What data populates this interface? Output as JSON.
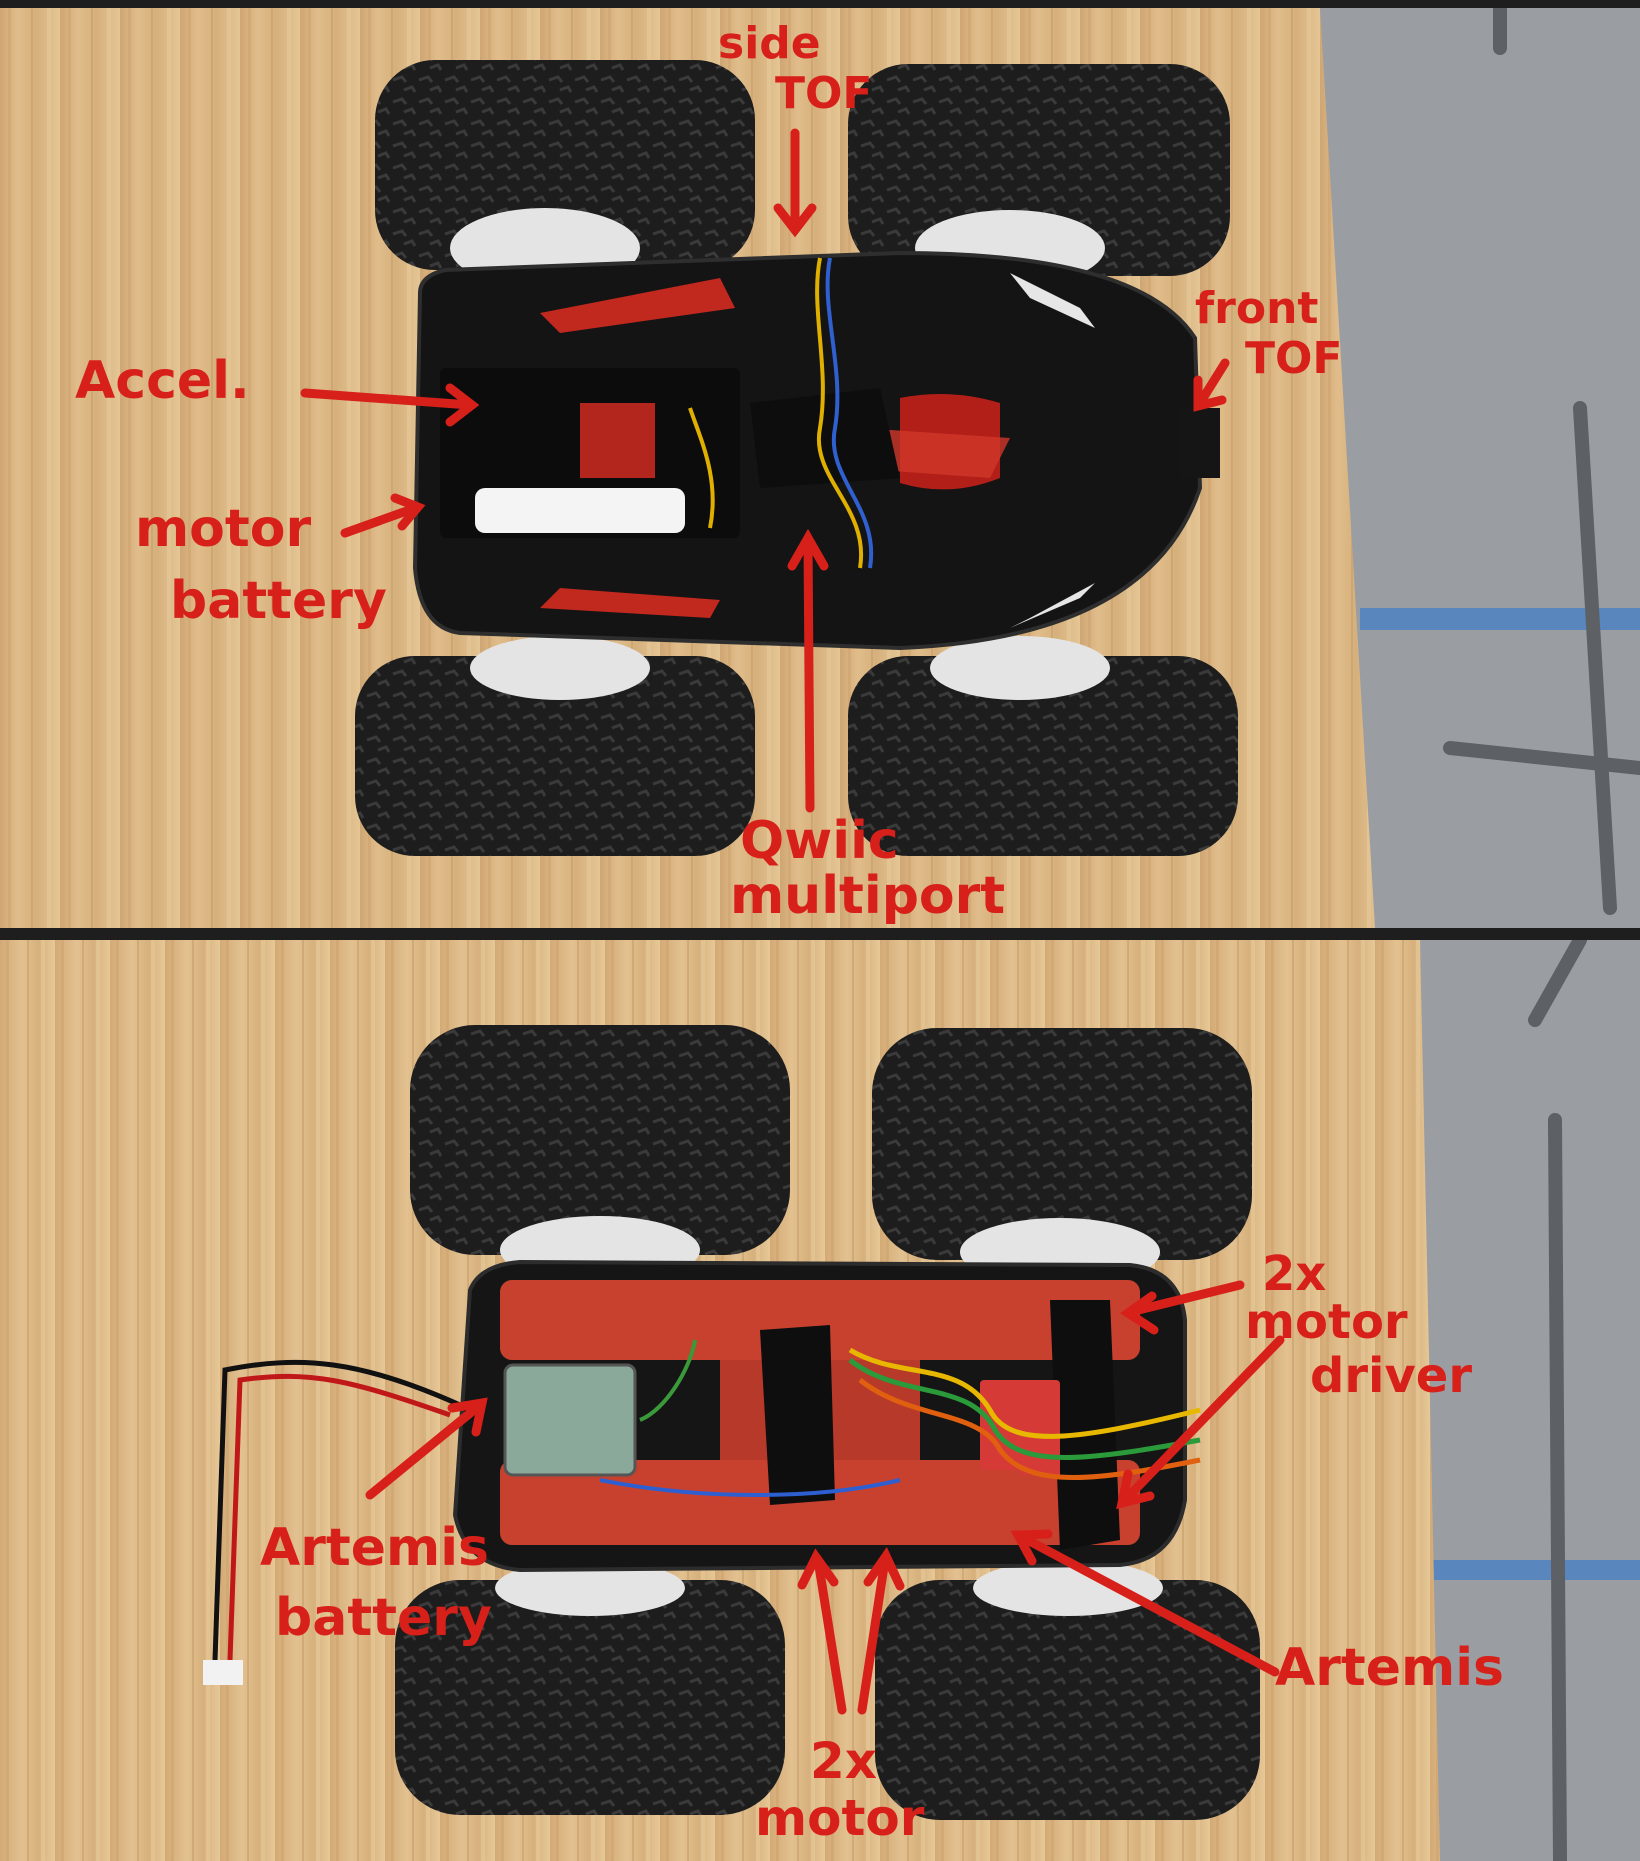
{
  "top_labels": {
    "side_tof_1": "side",
    "side_tof_2": "TOF",
    "front_tof_1": "front",
    "front_tof_2": "TOF",
    "accel": "Accel.",
    "motor_battery_1": "motor",
    "motor_battery_2": "battery",
    "qwiic_1": "Qwiic",
    "qwiic_2": "multiport"
  },
  "bottom_labels": {
    "driver_1": "2x",
    "driver_2": "motor",
    "driver_3": "driver",
    "artemis_battery_1": "Artemis",
    "artemis_battery_2": "battery",
    "artemis": "Artemis",
    "motor_1": "2x",
    "motor_2": "motor"
  },
  "colors": {
    "annotation": "#d8201a",
    "wood": "#d9b583",
    "floor": "#9a9ea3",
    "tire": "#1b1b1b",
    "chassis_red": "#c8412f"
  }
}
